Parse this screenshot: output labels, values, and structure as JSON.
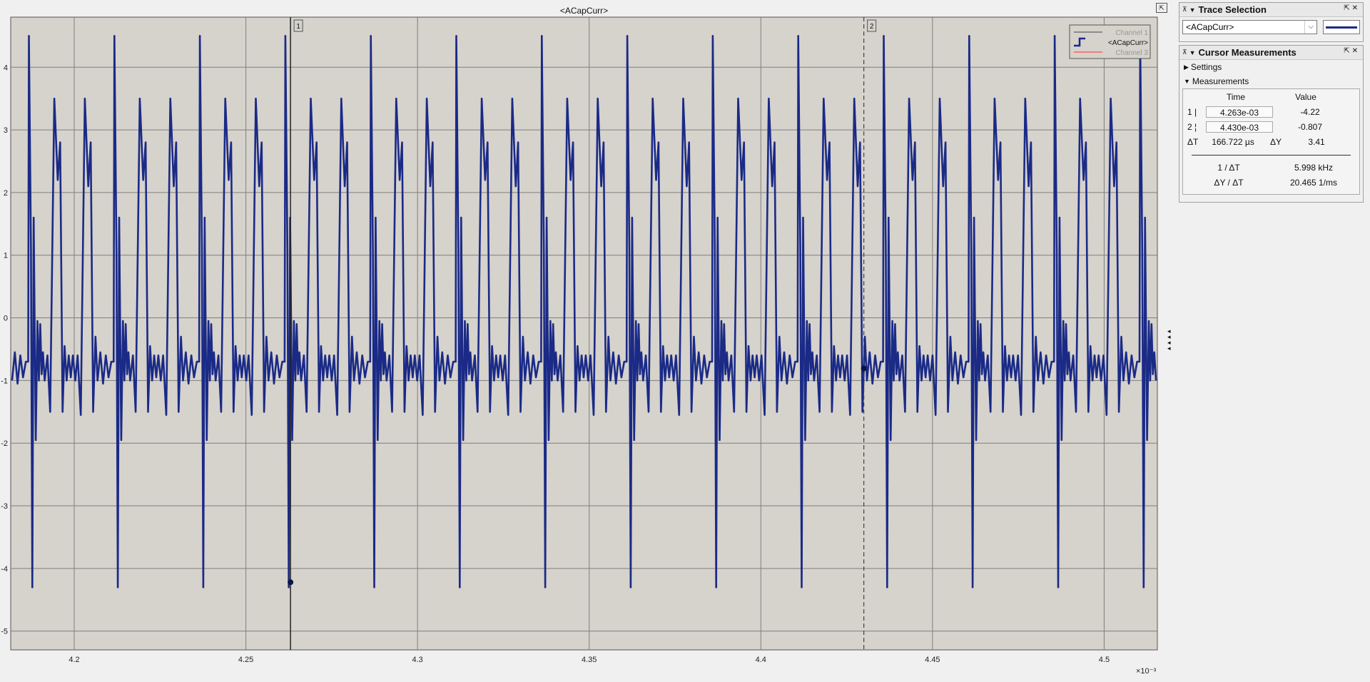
{
  "plot": {
    "title": "<ACapCurr>",
    "exponent_label": "×10⁻³",
    "x_ticks": [
      "4.2",
      "4.25",
      "4.3",
      "4.35",
      "4.4",
      "4.45",
      "4.5"
    ],
    "y_ticks": [
      "4",
      "3",
      "2",
      "1",
      "0",
      "-1",
      "-2",
      "-3",
      "-4",
      "-5"
    ],
    "legend": [
      "Channel 1",
      "<ACapCurr>",
      "Channel 3"
    ],
    "cursor1_label": "1",
    "cursor2_label": "2",
    "colors": {
      "background": "#d6d2cc",
      "trace": "#1a2a86",
      "grid": "#7f7f7f",
      "channel1": "#8c8c8c",
      "channel3": "#f08080"
    }
  },
  "chart_data": {
    "type": "line",
    "title": "<ACapCurr>",
    "xlabel": "",
    "ylabel": "",
    "xlim": [
      0.0041815,
      0.0045155
    ],
    "ylim": [
      -5.3,
      4.8
    ],
    "x_exponent": "×10⁻³",
    "grid": true,
    "legend_position": "top-right",
    "series": [
      {
        "name": "<ACapCurr>",
        "period": 2.49e-05,
        "first_spike_x": 0.0041866,
        "pulse": [
          [
            0,
            -0.7
          ],
          [
            2e-07,
            4.5
          ],
          [
            8e-07,
            1.1
          ],
          [
            1.2e-06,
            -4.3
          ],
          [
            1.6e-06,
            1.6
          ],
          [
            2.2e-06,
            -1.95
          ],
          [
            2.7e-06,
            -0.05
          ],
          [
            3.1e-06,
            -1.0
          ],
          [
            3.5e-06,
            -0.1
          ],
          [
            3.9e-06,
            -0.9
          ],
          [
            4.3e-06,
            -0.55
          ],
          [
            4.8e-06,
            -1.0
          ],
          [
            5.6e-06,
            -0.6
          ],
          [
            6.4e-06,
            -1.5
          ],
          [
            7.6e-06,
            3.5
          ],
          [
            8.6e-06,
            2.2
          ],
          [
            9.3e-06,
            2.8
          ],
          [
            1e-05,
            -1.5
          ],
          [
            1.06e-05,
            -0.45
          ],
          [
            1.12e-05,
            -1.0
          ],
          [
            1.18e-05,
            -0.6
          ],
          [
            1.24e-05,
            -0.95
          ],
          [
            1.3e-05,
            -0.6
          ],
          [
            1.37e-05,
            -1.0
          ],
          [
            1.44e-05,
            -0.6
          ],
          [
            1.53e-05,
            -1.55
          ],
          [
            1.65e-05,
            3.5
          ],
          [
            1.75e-05,
            2.1
          ],
          [
            1.82e-05,
            2.8
          ],
          [
            1.89e-05,
            -1.5
          ],
          [
            1.96e-05,
            -0.3
          ],
          [
            2.02e-05,
            -1.0
          ],
          [
            2.1e-05,
            -0.55
          ],
          [
            2.18e-05,
            -1.05
          ],
          [
            2.26e-05,
            -0.6
          ],
          [
            2.34e-05,
            -0.95
          ],
          [
            2.42e-05,
            -0.7
          ],
          [
            2.49e-05,
            -0.7
          ]
        ]
      }
    ],
    "cursors": [
      {
        "label": "1",
        "x": 0.004263,
        "y": -4.22,
        "style": "solid"
      },
      {
        "label": "2",
        "x": 0.00443,
        "y": -0.807,
        "style": "dashed"
      }
    ]
  },
  "trace_selection": {
    "title": "Trace Selection",
    "selected": "<ACapCurr>"
  },
  "cursor_measurements": {
    "title": "Cursor Measurements",
    "settings_label": "Settings",
    "measurements_label": "Measurements",
    "time_header": "Time",
    "value_header": "Value",
    "row1_label": "1 |",
    "row1_time": "4.263e-03",
    "row1_value": "-4.22",
    "row2_label": "2 ¦",
    "row2_time": "4.430e-03",
    "row2_value": "-0.807",
    "dt_label": "ΔT",
    "dt_value": "166.722 µs",
    "dy_label": "ΔY",
    "dy_value": "3.41",
    "inv_dt_label": "1 / ΔT",
    "inv_dt_value": "5.998 kHz",
    "slope_label": "ΔY / ΔT",
    "slope_value": "20.465 1/ms"
  }
}
